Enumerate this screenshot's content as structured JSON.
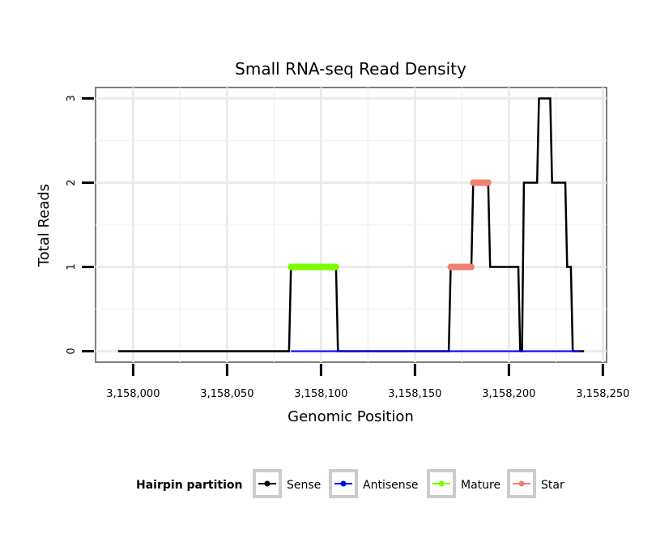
{
  "chart_data": {
    "type": "line",
    "title": "Small RNA-seq Read Density",
    "xlabel": "Genomic Position",
    "ylabel": "Total Reads",
    "xlim": [
      3157980,
      3158252
    ],
    "ylim": [
      -0.13,
      3.13
    ],
    "x_ticks": [
      3158000,
      3158050,
      3158100,
      3158150,
      3158200,
      3158250
    ],
    "x_tick_labels": [
      "3,158,000",
      "3,158,050",
      "3,158,100",
      "3,158,150",
      "3,158,200",
      "3,158,250"
    ],
    "y_ticks": [
      0,
      1,
      2,
      3
    ],
    "y_tick_labels": [
      "0",
      "1",
      "2",
      "3"
    ],
    "grid": true,
    "legend_title": "Hairpin partition",
    "legend_position": "bottom",
    "series": [
      {
        "name": "Sense",
        "color": "#000000",
        "points": [
          [
            3157992,
            0
          ],
          [
            3158083,
            0
          ],
          [
            3158084,
            1
          ],
          [
            3158108,
            1
          ],
          [
            3158109,
            0
          ],
          [
            3158168,
            0
          ],
          [
            3158169,
            1
          ],
          [
            3158180,
            1
          ],
          [
            3158181,
            2
          ],
          [
            3158189,
            2
          ],
          [
            3158190,
            1
          ],
          [
            3158205,
            1
          ],
          [
            3158206,
            0
          ],
          [
            3158207,
            0
          ],
          [
            3158208,
            2
          ],
          [
            3158215,
            2
          ],
          [
            3158216,
            3
          ],
          [
            3158222,
            3
          ],
          [
            3158223,
            2
          ],
          [
            3158230,
            2
          ],
          [
            3158231,
            1
          ],
          [
            3158233,
            1
          ],
          [
            3158234,
            0
          ],
          [
            3158240,
            0
          ]
        ]
      },
      {
        "name": "Antisense",
        "color": "#0000ff",
        "points": [
          [
            3158084,
            0
          ],
          [
            3158108,
            0
          ],
          [
            3158169,
            0
          ],
          [
            3158205,
            0
          ],
          [
            3158208,
            0
          ],
          [
            3158238,
            0
          ]
        ]
      },
      {
        "name": "Mature",
        "color": "#7cfc00",
        "points": [
          [
            3158084,
            1
          ],
          [
            3158108,
            1
          ]
        ]
      },
      {
        "name": "Star",
        "color": "#f08070",
        "segments": [
          [
            [
              3158169,
              1
            ],
            [
              3158180,
              1
            ]
          ],
          [
            [
              3158181,
              2
            ],
            [
              3158189,
              2
            ]
          ]
        ]
      }
    ]
  }
}
